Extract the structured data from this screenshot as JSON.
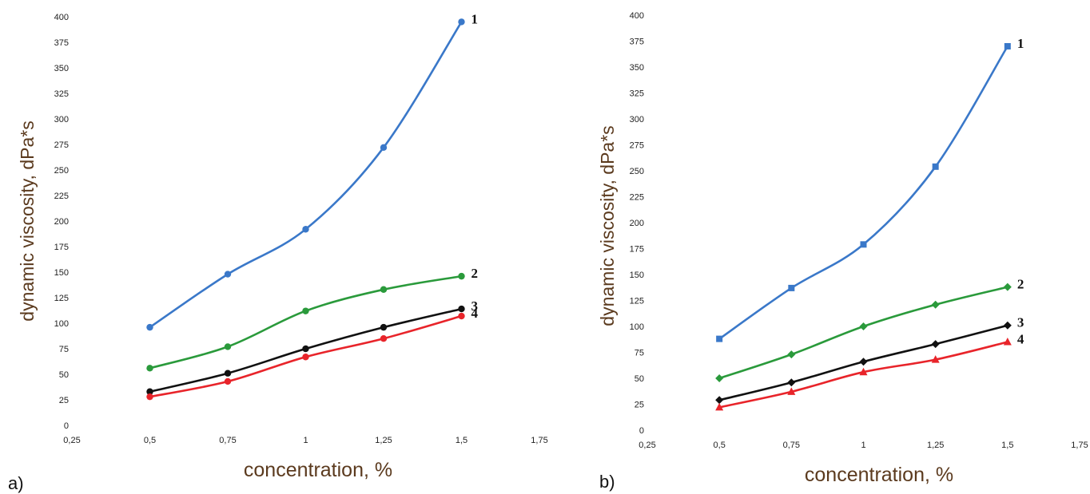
{
  "chart_data": [
    {
      "type": "line",
      "panel_label": "a)",
      "xlabel": "concentration, %",
      "ylabel": "dynamic viscosity, dPa*s",
      "xlim": [
        0.25,
        1.75
      ],
      "ylim": [
        0,
        400
      ],
      "x_ticks": [
        "0,25",
        "0,5",
        "0,75",
        "1",
        "1,25",
        "1,5",
        "1,75"
      ],
      "x_tick_values": [
        0.25,
        0.5,
        0.75,
        1,
        1.25,
        1.5,
        1.75
      ],
      "y_ticks": [
        "0",
        "25",
        "50",
        "75",
        "100",
        "125",
        "150",
        "175",
        "200",
        "225",
        "250",
        "275",
        "300",
        "325",
        "350",
        "375",
        "400"
      ],
      "y_tick_values": [
        0,
        25,
        50,
        75,
        100,
        125,
        150,
        175,
        200,
        225,
        250,
        275,
        300,
        325,
        350,
        375,
        400
      ],
      "grid": false,
      "x": [
        0.5,
        0.75,
        1,
        1.25,
        1.5
      ],
      "series": [
        {
          "name": "1",
          "color": "#3a78c9",
          "marker": "circle",
          "values": [
            96,
            148,
            192,
            272,
            395
          ]
        },
        {
          "name": "2",
          "color": "#2a9a3b",
          "marker": "circle",
          "values": [
            56,
            77,
            112,
            133,
            146
          ]
        },
        {
          "name": "3",
          "color": "#111111",
          "marker": "circle",
          "values": [
            33,
            51,
            75,
            96,
            114
          ]
        },
        {
          "name": "4",
          "color": "#e8242a",
          "marker": "circle",
          "values": [
            28,
            43,
            67,
            85,
            107
          ]
        }
      ]
    },
    {
      "type": "line",
      "panel_label": "b)",
      "xlabel": "concentration, %",
      "ylabel": "dynamic viscosity, dPa*s",
      "xlim": [
        0.25,
        1.75
      ],
      "ylim": [
        0,
        400
      ],
      "x_ticks": [
        "0,25",
        "0,5",
        "0,75",
        "1",
        "1,25",
        "1,5",
        "1,75"
      ],
      "x_tick_values": [
        0.25,
        0.5,
        0.75,
        1,
        1.25,
        1.5,
        1.75
      ],
      "y_ticks": [
        "0",
        "25",
        "50",
        "75",
        "100",
        "125",
        "150",
        "175",
        "200",
        "225",
        "250",
        "275",
        "300",
        "325",
        "350",
        "375",
        "400"
      ],
      "y_tick_values": [
        0,
        25,
        50,
        75,
        100,
        125,
        150,
        175,
        200,
        225,
        250,
        275,
        300,
        325,
        350,
        375,
        400
      ],
      "grid": false,
      "x": [
        0.5,
        0.75,
        1,
        1.25,
        1.5
      ],
      "series": [
        {
          "name": "1",
          "color": "#3a78c9",
          "marker": "square",
          "values": [
            88,
            137,
            179,
            254,
            370
          ]
        },
        {
          "name": "2",
          "color": "#2a9a3b",
          "marker": "diamond",
          "values": [
            50,
            73,
            100,
            121,
            138
          ]
        },
        {
          "name": "3",
          "color": "#111111",
          "marker": "diamond",
          "values": [
            29,
            46,
            66,
            83,
            101
          ]
        },
        {
          "name": "4",
          "color": "#e8242a",
          "marker": "triangle",
          "values": [
            22,
            37,
            56,
            68,
            85
          ]
        }
      ]
    }
  ]
}
